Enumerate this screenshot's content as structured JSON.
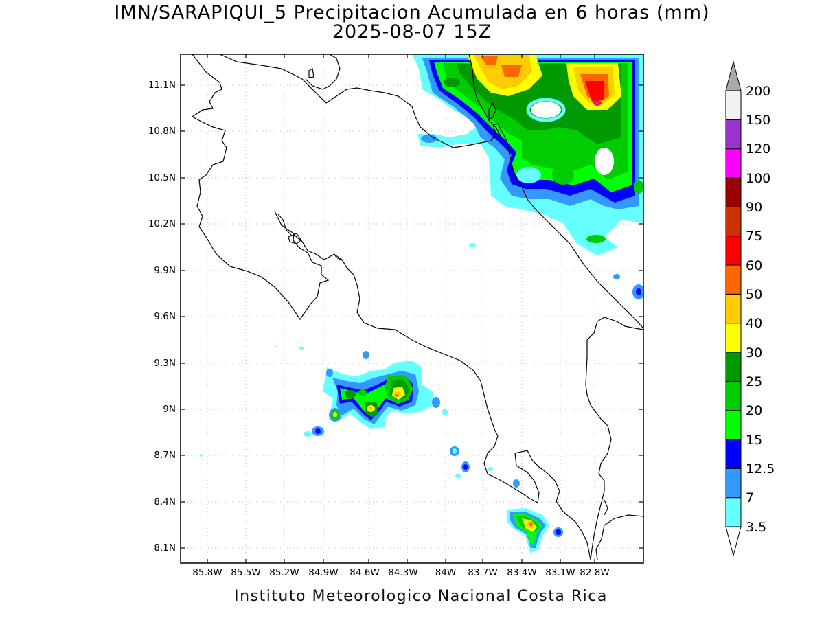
{
  "title_line1": "IMN/SARAPIQUI_5 Precipitacion Acumulada en 6 horas (mm)",
  "title_line2": "2025-08-07 15Z",
  "footer": "Instituto Meteorologico Nacional Costa Rica",
  "lat_labels": [
    "11.1N",
    "10.8N",
    "10.5N",
    "10.2N",
    "9.9N",
    "9.6N",
    "9.3N",
    "9N",
    "8.7N",
    "8.4N",
    "8.1N"
  ],
  "lon_labels": [
    "85.8W",
    "85.5W",
    "85.2W",
    "84.9W",
    "84.6W",
    "84.3W",
    "84W",
    "83.7W",
    "83.4W",
    "83.1W",
    "82.8W"
  ],
  "colorbar": {
    "levels": [
      "3.5",
      "7",
      "12.5",
      "15",
      "20",
      "25",
      "30",
      "40",
      "50",
      "60",
      "75",
      "90",
      "100",
      "120",
      "150",
      "200"
    ],
    "colors": [
      "#ffffff",
      "#66ffff",
      "#3399ff",
      "#0000ff",
      "#00ff00",
      "#00cc00",
      "#009900",
      "#ffff00",
      "#ffcc00",
      "#ff6600",
      "#ff0000",
      "#cc3300",
      "#990000",
      "#ff00ff",
      "#9933cc",
      "#f2f2f2",
      "#aaaaaa"
    ]
  }
}
